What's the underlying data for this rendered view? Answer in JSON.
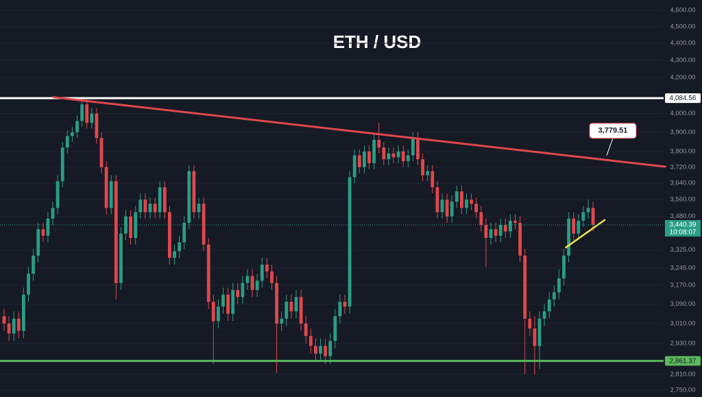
{
  "chart_data": {
    "type": "candlestick",
    "title": "ETH / USD",
    "log_scale": true,
    "ylim": [
      2725,
      4665
    ],
    "yticks": [
      {
        "value": 4600,
        "label": "4,600.00"
      },
      {
        "value": 4500,
        "label": "4,500.00"
      },
      {
        "value": 4400,
        "label": "4,400.00"
      },
      {
        "value": 4300,
        "label": "4,300.00"
      },
      {
        "value": 4200,
        "label": "4,200.00"
      },
      {
        "value": 4000,
        "label": "4,000.00"
      },
      {
        "value": 3900,
        "label": "3,900.00"
      },
      {
        "value": 3800,
        "label": "3,800.00"
      },
      {
        "value": 3720,
        "label": "3,720.00"
      },
      {
        "value": 3640,
        "label": "3,640.00"
      },
      {
        "value": 3560,
        "label": "3,560.00"
      },
      {
        "value": 3480,
        "label": "3,480.00"
      },
      {
        "value": 3325,
        "label": "3,325.00"
      },
      {
        "value": 3245,
        "label": "3,245.00"
      },
      {
        "value": 3170,
        "label": "3,170.00"
      },
      {
        "value": 3090,
        "label": "3,090.00"
      },
      {
        "value": 3010,
        "label": "3,010.00"
      },
      {
        "value": 2930,
        "label": "2,930.00"
      },
      {
        "value": 2810,
        "label": "2,810.00"
      },
      {
        "value": 2750,
        "label": "2,750.00"
      }
    ],
    "up_color": "#2a9d84",
    "down_color": "#e0474c",
    "open": [
      3040,
      3010,
      2970,
      3030,
      2980,
      3130,
      3220,
      3300,
      3420,
      3390,
      3470,
      3520,
      3650,
      3820,
      3880,
      3900,
      3960,
      4050,
      3950,
      4000,
      3870,
      3720,
      3520,
      3650,
      3180,
      3400,
      3480,
      3380,
      3500,
      3560,
      3500,
      3540,
      3500,
      3620,
      3500,
      3290,
      3320,
      3360,
      3450,
      3700,
      3500,
      3540,
      3350,
      3100,
      3020,
      3080,
      3130,
      3050,
      3150,
      3120,
      3180,
      3210,
      3150,
      3190,
      3260,
      3230,
      3180,
      3010,
      3030,
      3100,
      3060,
      3120,
      3010,
      2960,
      2920,
      2890,
      2920,
      2880,
      2940,
      3040,
      3100,
      3080,
      3670,
      3780,
      3720,
      3800,
      3740,
      3860,
      3820,
      3760,
      3790,
      3770,
      3800,
      3750,
      3780,
      3870,
      3760,
      3680,
      3700,
      3620,
      3500,
      3560,
      3480,
      3550,
      3600,
      3520,
      3560,
      3540,
      3500,
      3440,
      3380,
      3420,
      3390,
      3440,
      3410,
      3460,
      3450,
      3300,
      3030,
      2990,
      2920,
      3030,
      3060,
      3110,
      3140,
      3200,
      3300,
      3470,
      3400,
      3460,
      3500,
      3520
    ],
    "close": [
      3010,
      2970,
      3030,
      2980,
      3130,
      3220,
      3300,
      3420,
      3390,
      3470,
      3520,
      3650,
      3820,
      3880,
      3900,
      3960,
      4050,
      3950,
      4000,
      3870,
      3720,
      3520,
      3650,
      3180,
      3400,
      3480,
      3380,
      3500,
      3560,
      3500,
      3540,
      3500,
      3620,
      3500,
      3290,
      3320,
      3360,
      3450,
      3700,
      3500,
      3540,
      3350,
      3100,
      3020,
      3080,
      3130,
      3050,
      3150,
      3120,
      3180,
      3210,
      3150,
      3190,
      3260,
      3230,
      3180,
      3010,
      3030,
      3100,
      3060,
      3120,
      3010,
      2960,
      2920,
      2890,
      2920,
      2880,
      2940,
      3040,
      3100,
      3080,
      3670,
      3780,
      3720,
      3800,
      3740,
      3860,
      3820,
      3760,
      3790,
      3770,
      3800,
      3750,
      3780,
      3870,
      3760,
      3680,
      3700,
      3620,
      3500,
      3560,
      3480,
      3550,
      3600,
      3520,
      3560,
      3540,
      3500,
      3440,
      3380,
      3420,
      3390,
      3440,
      3410,
      3460,
      3450,
      3300,
      3030,
      2990,
      2920,
      3030,
      3060,
      3110,
      3140,
      3200,
      3300,
      3470,
      3400,
      3460,
      3500,
      3520,
      3440
    ],
    "high": [
      3070,
      3040,
      3060,
      3060,
      3160,
      3250,
      3330,
      3450,
      3450,
      3500,
      3550,
      3680,
      3850,
      3910,
      3930,
      3990,
      4085,
      4080,
      4030,
      4030,
      3900,
      3750,
      3680,
      3680,
      3430,
      3510,
      3510,
      3530,
      3590,
      3590,
      3570,
      3570,
      3650,
      3650,
      3530,
      3350,
      3390,
      3480,
      3730,
      3730,
      3570,
      3570,
      3380,
      3130,
      3110,
      3160,
      3160,
      3180,
      3180,
      3210,
      3240,
      3240,
      3220,
      3290,
      3290,
      3260,
      3210,
      3060,
      3130,
      3130,
      3150,
      3150,
      3040,
      2990,
      2950,
      2950,
      2950,
      2970,
      3070,
      3130,
      3130,
      3700,
      3810,
      3810,
      3830,
      3830,
      3890,
      3950,
      3850,
      3820,
      3820,
      3830,
      3830,
      3810,
      3900,
      3900,
      3790,
      3730,
      3730,
      3650,
      3590,
      3590,
      3580,
      3630,
      3630,
      3590,
      3590,
      3570,
      3530,
      3470,
      3450,
      3450,
      3470,
      3470,
      3490,
      3490,
      3480,
      3330,
      3060,
      3040,
      3060,
      3090,
      3140,
      3170,
      3240,
      3330,
      3500,
      3500,
      3490,
      3530,
      3560,
      3550
    ],
    "low": [
      2980,
      2940,
      2940,
      2950,
      2950,
      3100,
      3190,
      3270,
      3360,
      3360,
      3440,
      3490,
      3620,
      3790,
      3850,
      3870,
      3930,
      3920,
      3920,
      3840,
      3690,
      3490,
      3490,
      3110,
      3150,
      3370,
      3350,
      3350,
      3470,
      3470,
      3470,
      3470,
      3470,
      3470,
      3260,
      3260,
      3290,
      3330,
      3420,
      3470,
      3470,
      3320,
      3070,
      2850,
      2990,
      3050,
      3020,
      3020,
      3090,
      3090,
      3150,
      3120,
      3120,
      3160,
      3200,
      3150,
      2815,
      2980,
      3000,
      3030,
      3030,
      2980,
      2930,
      2890,
      2860,
      2860,
      2850,
      2850,
      2910,
      3010,
      3050,
      3050,
      3640,
      3690,
      3690,
      3710,
      3710,
      3790,
      3730,
      3730,
      3740,
      3740,
      3720,
      3720,
      3750,
      3730,
      3650,
      3650,
      3590,
      3470,
      3470,
      3450,
      3450,
      3520,
      3490,
      3490,
      3510,
      3470,
      3410,
      3250,
      3350,
      3360,
      3360,
      3380,
      3380,
      3420,
      3270,
      2810,
      2960,
      2810,
      2830,
      3000,
      3030,
      3080,
      3110,
      3170,
      3270,
      3370,
      3370,
      3430,
      3470,
      3410
    ],
    "levels": [
      {
        "value": 4084.56,
        "label": "4,084.56",
        "color": "#ffffff"
      },
      {
        "value": 2861.37,
        "label": "2,861.37",
        "color": "#5cb85c"
      }
    ],
    "trendline": {
      "x": [
        10,
        136
      ],
      "values": [
        4090,
        3722
      ],
      "color": "#e0474c"
    },
    "support_line": {
      "x": [
        115.3,
        123.5
      ],
      "values": [
        3335,
        3465
      ],
      "color": "#f2e14c"
    },
    "annotation": {
      "label": "3,779.51",
      "value": 3779.51,
      "x": 123.8
    },
    "current_price": {
      "value": 3440.39,
      "label": "3,440.39",
      "countdown": "10:08:07",
      "color": "#2a9d84"
    }
  }
}
